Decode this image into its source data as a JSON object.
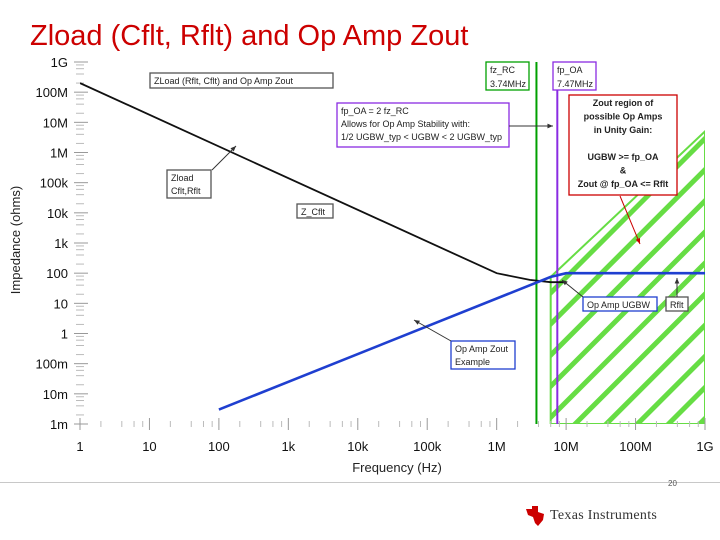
{
  "slide": {
    "title": "Zload (Cflt, Rflt) and Op Amp Zout",
    "page_number": "20",
    "logo_text": "Texas Instruments",
    "logo_icon": "texas-state-icon"
  },
  "chart_data": {
    "type": "line",
    "title": "",
    "xlabel": "Frequency (Hz)",
    "ylabel": "Impedance (ohms)",
    "x_scale": "log",
    "y_scale": "log",
    "xlim": [
      1,
      1000000000
    ],
    "ylim": [
      0.001,
      1000000000
    ],
    "x_ticks": [
      1,
      10,
      100,
      1000,
      10000,
      100000,
      1000000,
      10000000,
      100000000,
      1000000000
    ],
    "x_tick_labels": [
      "1",
      "10",
      "100",
      "1k",
      "10k",
      "100k",
      "1M",
      "10M",
      "100M",
      "1G"
    ],
    "y_ticks": [
      0.001,
      0.01,
      0.1,
      1,
      10,
      100,
      1000,
      10000,
      100000,
      1000000,
      10000000,
      100000000,
      1000000000
    ],
    "y_tick_labels": [
      "1m",
      "10m",
      "100m",
      "1",
      "10",
      "100",
      "1k",
      "10k",
      "100k",
      "1M",
      "10M",
      "100M",
      "1G"
    ],
    "grid": false,
    "series": [
      {
        "color": "#111111",
        "points": [
          [
            1,
            200000000
          ],
          [
            1000000,
            100
          ],
          [
            3000000,
            60
          ],
          [
            6000000,
            50
          ],
          [
            10000000,
            50
          ]
        ]
      },
      {
        "color": "#1f3fd0",
        "points": [
          [
            100,
            0.003
          ],
          [
            6000000,
            75
          ],
          [
            10000000,
            100
          ],
          [
            1000000000,
            100
          ]
        ]
      }
    ],
    "vertical_lines": [
      {
        "x": 3740000,
        "color": "#00a000"
      },
      {
        "x": 7470000,
        "color": "#8a2be2"
      }
    ],
    "region": {
      "color": "#66dd44",
      "polygon": [
        [
          6000000,
          75
        ],
        [
          1000000000,
          5000000
        ],
        [
          1000000000,
          0.001
        ],
        [
          6000000,
          0.001
        ]
      ]
    },
    "annotations": {
      "zload_title": "ZLoad (Rflt, Cflt) and Op Amp Zout",
      "fpoa_eq": [
        "fp_OA = 2 fz_RC",
        "Allows for Op Amp Stability with:",
        "1/2 UGBW_typ < UGBW < 2 UGBW_typ"
      ],
      "fz_rc": [
        "fz_RC",
        "3.74MHz"
      ],
      "fp_oa": [
        "fp_OA",
        "7.47MHz"
      ],
      "zout_region": [
        "Zout region of",
        "possible Op Amps",
        "in Unity Gain:",
        "",
        "UGBW >= fp_OA",
        "&",
        "Zout @ fp_OA <= Rflt"
      ],
      "zload": [
        "Zload",
        "Cflt,Rflt"
      ],
      "zcflt": "Z_Cflt",
      "op_amp_ugbw": "Op Amp UGBW",
      "rflt": "Rflt",
      "op_amp_zout": [
        "Op Amp Zout",
        "Example"
      ]
    }
  }
}
